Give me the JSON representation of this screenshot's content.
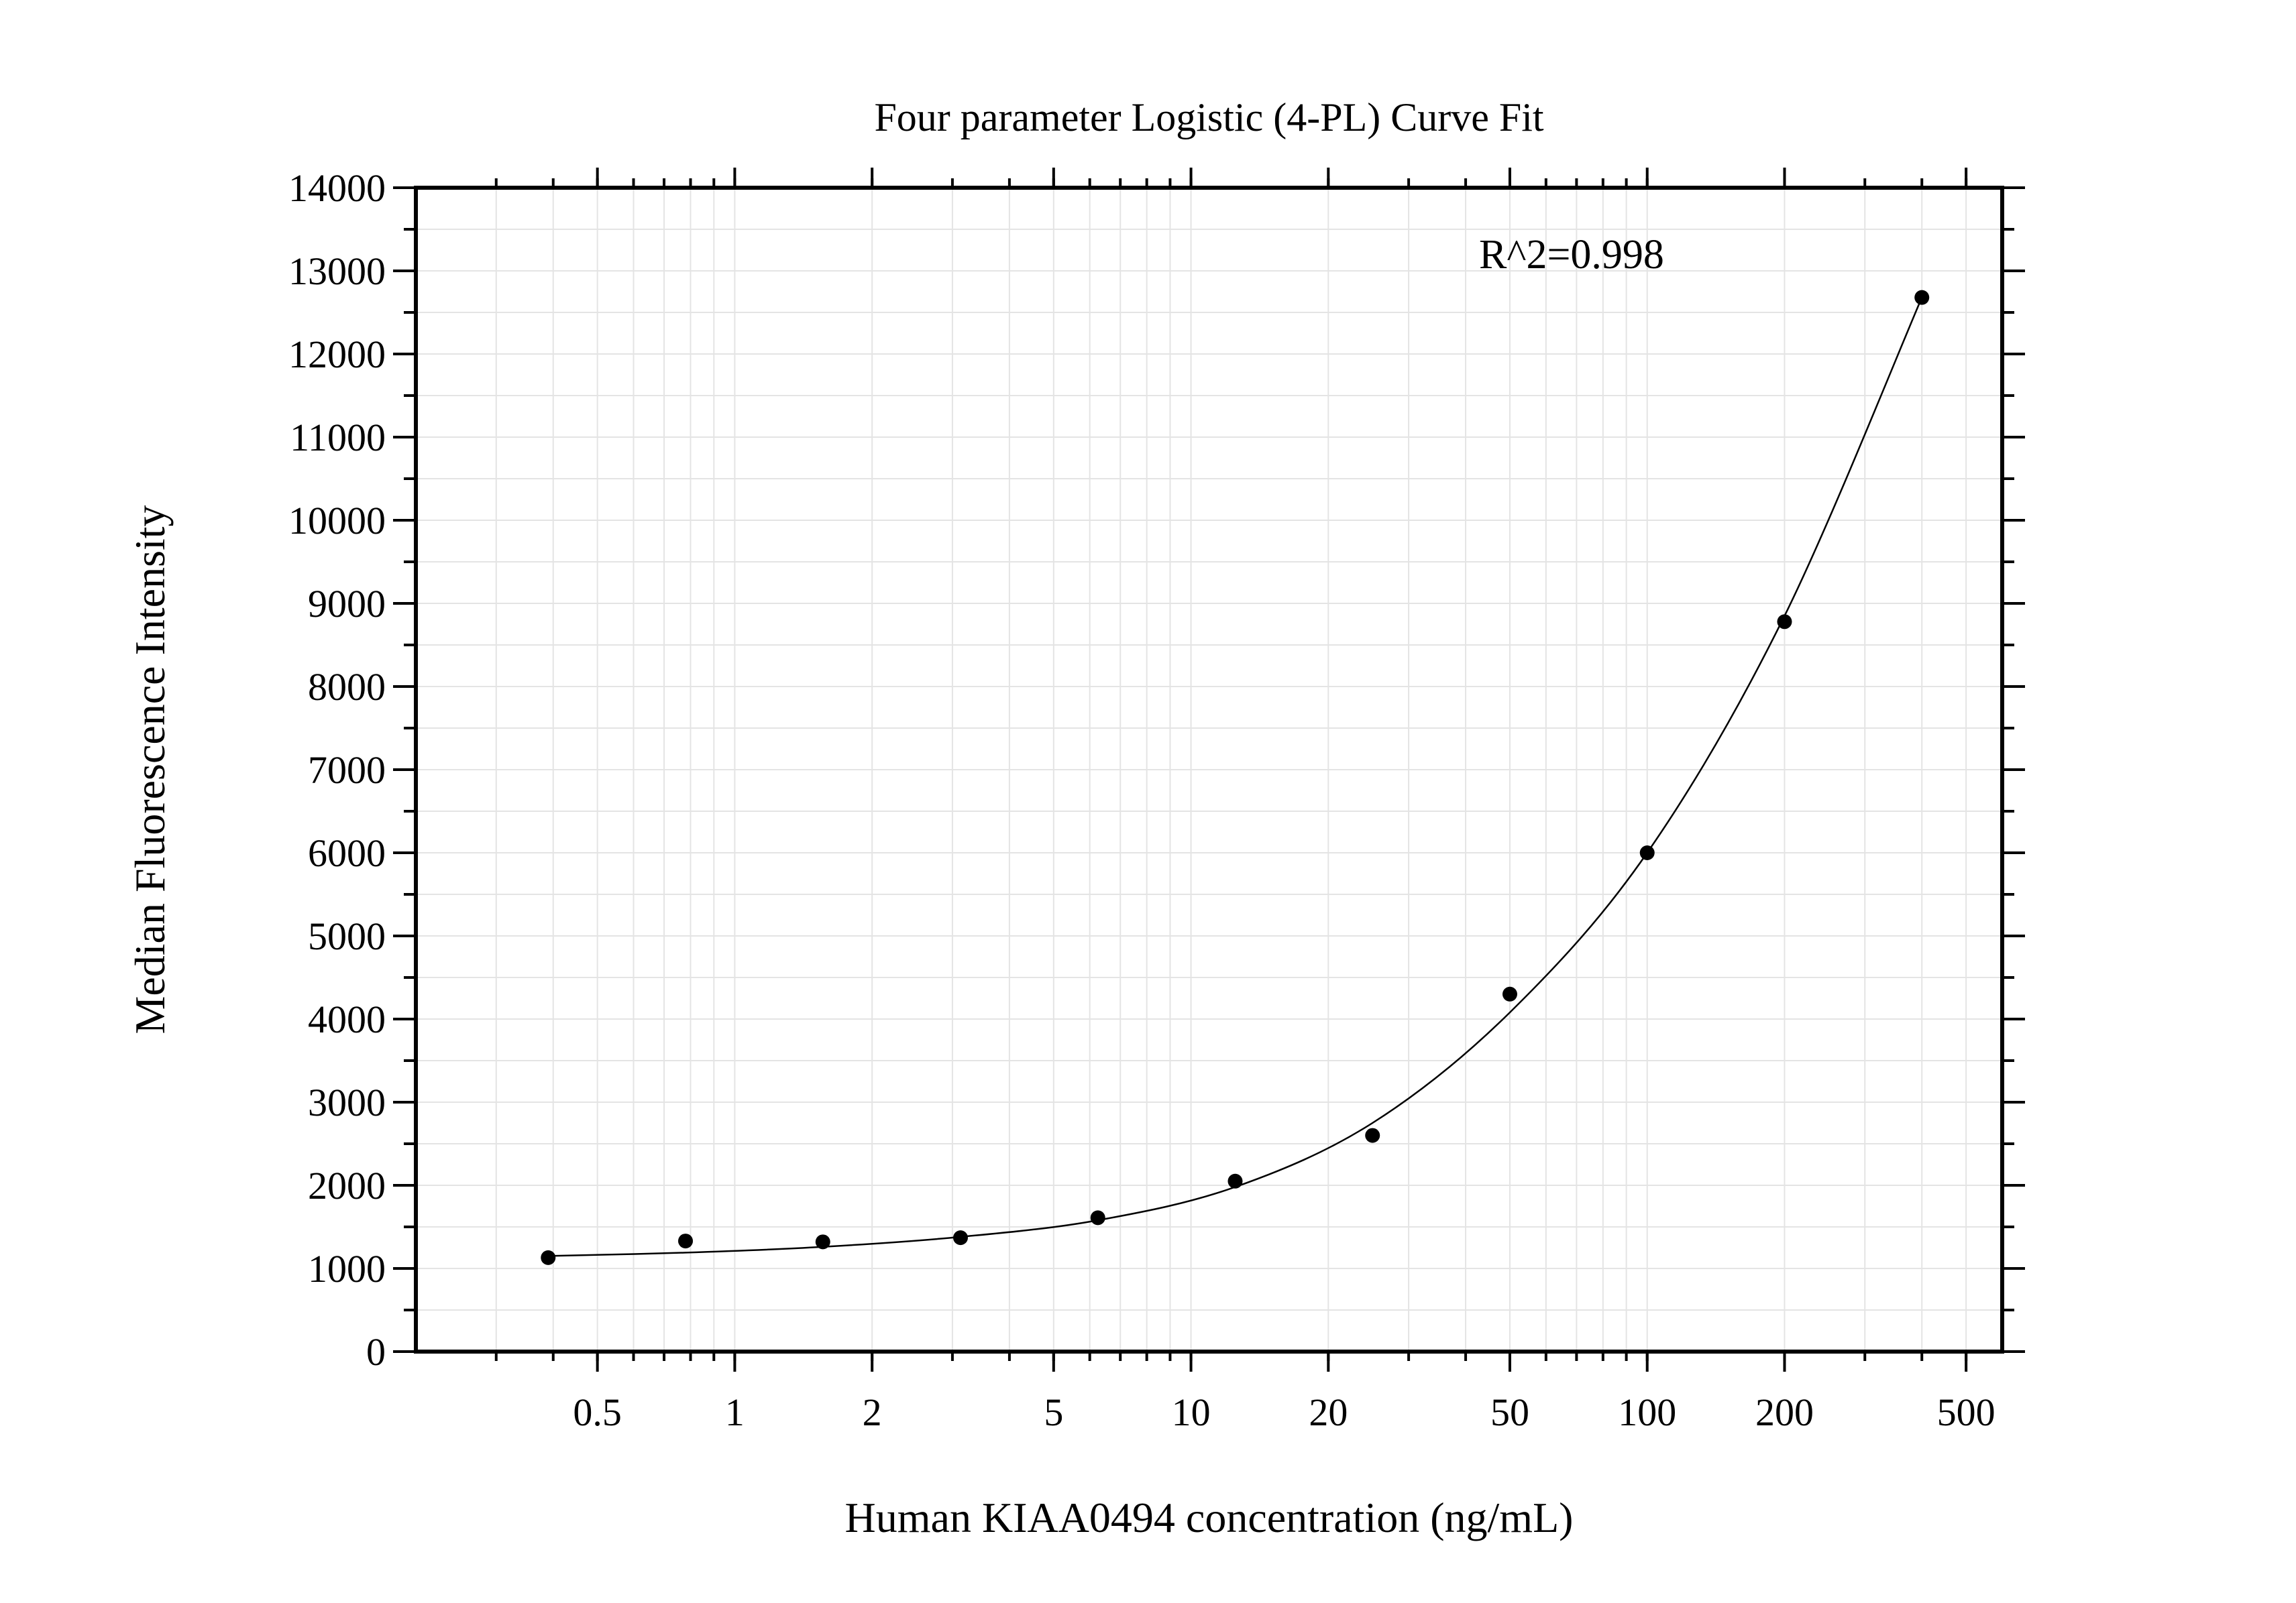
{
  "chart_data": {
    "type": "scatter",
    "title": "Four parameter Logistic (4-PL) Curve Fit",
    "xlabel": "Human KIAA0494 concentration (ng/mL)",
    "ylabel": "Median Fluorescence Intensity",
    "x_scale": "log",
    "xlim": [
      0.2,
      600
    ],
    "ylim": [
      0,
      14000
    ],
    "x_ticks": [
      0.5,
      1,
      2,
      5,
      10,
      20,
      50,
      100,
      200,
      500
    ],
    "x_tick_labels": [
      "0.5",
      "1",
      "2",
      "5",
      "10",
      "20",
      "50",
      "100",
      "200",
      "500"
    ],
    "y_ticks": [
      0,
      1000,
      2000,
      3000,
      4000,
      5000,
      6000,
      7000,
      8000,
      9000,
      10000,
      11000,
      12000,
      13000,
      14000
    ],
    "y_tick_labels": [
      "0",
      "1000",
      "2000",
      "3000",
      "4000",
      "5000",
      "6000",
      "7000",
      "8000",
      "9000",
      "10000",
      "11000",
      "12000",
      "13000",
      "14000"
    ],
    "grid": true,
    "series": [
      {
        "x": [
          0.39,
          0.78,
          1.56,
          3.125,
          6.25,
          12.5,
          25,
          50,
          100,
          200,
          400
        ],
        "y": [
          1130,
          1330,
          1320,
          1370,
          1610,
          2050,
          2600,
          4300,
          6000,
          8780,
          12680
        ]
      }
    ],
    "fit_curve": {
      "x": [
        0.39,
        0.78,
        1.56,
        3.125,
        6.25,
        12.5,
        25,
        50,
        100,
        200,
        400
      ],
      "y": [
        1150,
        1190,
        1260,
        1380,
        1580,
        1980,
        2750,
        4080,
        6000,
        8850,
        12680
      ]
    },
    "annotations": [
      {
        "text": "R^2=0.998"
      }
    ]
  }
}
